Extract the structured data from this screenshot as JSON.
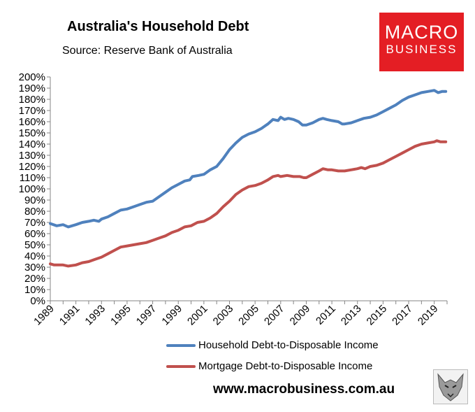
{
  "title": "Australia's Household Debt",
  "subtitle": "Source: Reserve Bank of Australia",
  "logo": {
    "line1": "MACRO",
    "line2": "BUSINESS",
    "color": "#e41e24"
  },
  "website": "www.macrobusiness.com.au",
  "mascot_icon": "fox-mascot-icon",
  "chart_data": {
    "type": "line",
    "title": "Australia's Household Debt",
    "xlabel": "",
    "ylabel": "",
    "xlim": [
      1989,
      2020
    ],
    "ylim": [
      0,
      200
    ],
    "y_tick_step": 10,
    "y_tick_suffix": "%",
    "x_ticks": [
      "1989",
      "1991",
      "1993",
      "1995",
      "1997",
      "1999",
      "2001",
      "2003",
      "2005",
      "2007",
      "2009",
      "2011",
      "2013",
      "2015",
      "2017",
      "2019"
    ],
    "grid": false,
    "legend_position": "bottom",
    "series": [
      {
        "name": "Household Debt-to-Disposable Income",
        "color": "#4f81bd",
        "points": [
          [
            1989.0,
            69
          ],
          [
            1989.5,
            67
          ],
          [
            1990.0,
            68
          ],
          [
            1990.4,
            66
          ],
          [
            1991.0,
            68
          ],
          [
            1991.5,
            70
          ],
          [
            1992.0,
            71
          ],
          [
            1992.4,
            72
          ],
          [
            1992.8,
            71
          ],
          [
            1993.0,
            73
          ],
          [
            1993.5,
            75
          ],
          [
            1994.0,
            78
          ],
          [
            1994.5,
            81
          ],
          [
            1995.0,
            82
          ],
          [
            1995.5,
            84
          ],
          [
            1996.0,
            86
          ],
          [
            1996.5,
            88
          ],
          [
            1997.0,
            89
          ],
          [
            1997.5,
            93
          ],
          [
            1998.0,
            97
          ],
          [
            1998.5,
            101
          ],
          [
            1999.0,
            104
          ],
          [
            1999.5,
            107
          ],
          [
            1999.9,
            108
          ],
          [
            2000.1,
            111
          ],
          [
            2000.6,
            112
          ],
          [
            2001.0,
            113
          ],
          [
            2001.5,
            117
          ],
          [
            2002.0,
            120
          ],
          [
            2002.5,
            127
          ],
          [
            2003.0,
            135
          ],
          [
            2003.5,
            141
          ],
          [
            2004.0,
            146
          ],
          [
            2004.5,
            149
          ],
          [
            2005.0,
            151
          ],
          [
            2005.5,
            154
          ],
          [
            2006.0,
            158
          ],
          [
            2006.4,
            162
          ],
          [
            2006.8,
            161
          ],
          [
            2007.0,
            164
          ],
          [
            2007.3,
            162
          ],
          [
            2007.6,
            163
          ],
          [
            2008.0,
            162
          ],
          [
            2008.4,
            160
          ],
          [
            2008.7,
            157
          ],
          [
            2009.0,
            157
          ],
          [
            2009.5,
            159
          ],
          [
            2010.0,
            162
          ],
          [
            2010.3,
            163
          ],
          [
            2010.6,
            162
          ],
          [
            2011.0,
            161
          ],
          [
            2011.5,
            160
          ],
          [
            2011.8,
            158
          ],
          [
            2012.0,
            158
          ],
          [
            2012.5,
            159
          ],
          [
            2013.0,
            161
          ],
          [
            2013.5,
            163
          ],
          [
            2014.0,
            164
          ],
          [
            2014.5,
            166
          ],
          [
            2015.0,
            169
          ],
          [
            2015.5,
            172
          ],
          [
            2016.0,
            175
          ],
          [
            2016.5,
            179
          ],
          [
            2017.0,
            182
          ],
          [
            2017.5,
            184
          ],
          [
            2018.0,
            186
          ],
          [
            2018.5,
            187
          ],
          [
            2019.0,
            188
          ],
          [
            2019.3,
            186
          ],
          [
            2019.6,
            187
          ],
          [
            2019.9,
            187
          ]
        ]
      },
      {
        "name": "Mortgage Debt-to-Disposable Income",
        "color": "#c0504d",
        "points": [
          [
            1989.0,
            33
          ],
          [
            1989.3,
            32
          ],
          [
            1989.7,
            32
          ],
          [
            1990.0,
            32
          ],
          [
            1990.4,
            31
          ],
          [
            1991.0,
            32
          ],
          [
            1991.5,
            34
          ],
          [
            1992.0,
            35
          ],
          [
            1992.5,
            37
          ],
          [
            1993.0,
            39
          ],
          [
            1993.5,
            42
          ],
          [
            1994.0,
            45
          ],
          [
            1994.5,
            48
          ],
          [
            1995.0,
            49
          ],
          [
            1995.5,
            50
          ],
          [
            1996.0,
            51
          ],
          [
            1996.5,
            52
          ],
          [
            1997.0,
            54
          ],
          [
            1997.5,
            56
          ],
          [
            1998.0,
            58
          ],
          [
            1998.5,
            61
          ],
          [
            1999.0,
            63
          ],
          [
            1999.5,
            66
          ],
          [
            2000.0,
            67
          ],
          [
            2000.5,
            70
          ],
          [
            2001.0,
            71
          ],
          [
            2001.5,
            74
          ],
          [
            2002.0,
            78
          ],
          [
            2002.5,
            84
          ],
          [
            2003.0,
            89
          ],
          [
            2003.5,
            95
          ],
          [
            2004.0,
            99
          ],
          [
            2004.5,
            102
          ],
          [
            2005.0,
            103
          ],
          [
            2005.5,
            105
          ],
          [
            2006.0,
            108
          ],
          [
            2006.4,
            111
          ],
          [
            2006.8,
            112
          ],
          [
            2007.0,
            111
          ],
          [
            2007.5,
            112
          ],
          [
            2008.0,
            111
          ],
          [
            2008.5,
            111
          ],
          [
            2008.8,
            110
          ],
          [
            2009.0,
            110
          ],
          [
            2009.5,
            113
          ],
          [
            2010.0,
            116
          ],
          [
            2010.3,
            118
          ],
          [
            2010.7,
            117
          ],
          [
            2011.0,
            117
          ],
          [
            2011.5,
            116
          ],
          [
            2012.0,
            116
          ],
          [
            2012.5,
            117
          ],
          [
            2013.0,
            118
          ],
          [
            2013.3,
            119
          ],
          [
            2013.6,
            118
          ],
          [
            2014.0,
            120
          ],
          [
            2014.5,
            121
          ],
          [
            2015.0,
            123
          ],
          [
            2015.5,
            126
          ],
          [
            2016.0,
            129
          ],
          [
            2016.5,
            132
          ],
          [
            2017.0,
            135
          ],
          [
            2017.5,
            138
          ],
          [
            2018.0,
            140
          ],
          [
            2018.5,
            141
          ],
          [
            2019.0,
            142
          ],
          [
            2019.2,
            143
          ],
          [
            2019.5,
            142
          ],
          [
            2019.9,
            142
          ]
        ]
      }
    ]
  }
}
